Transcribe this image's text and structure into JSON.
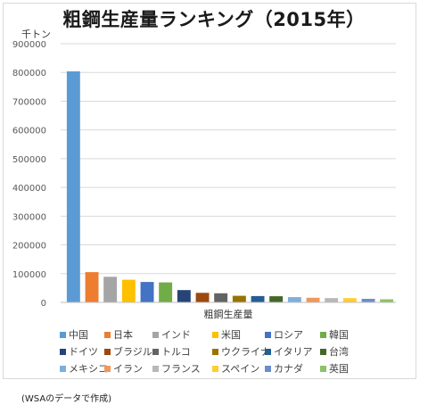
{
  "chart_data": {
    "type": "bar",
    "title": "粗鋼生産量ランキング（2015年）",
    "unit_label": "千トン",
    "xlabel": "粗鋼生産量",
    "ylabel": "",
    "ylim": [
      0,
      900000
    ],
    "ytick_step": 100000,
    "grid": true,
    "legend_position": "bottom",
    "categories": [
      "中国",
      "日本",
      "インド",
      "米国",
      "ロシア",
      "韓国",
      "ドイツ",
      "ブラジル",
      "トルコ",
      "ウクライナ",
      "イタリア",
      "台湾",
      "メキシコ",
      "イラン",
      "フランス",
      "スペイン",
      "カナダ",
      "英国"
    ],
    "values": [
      803825,
      105134,
      89026,
      78845,
      71110,
      69670,
      42676,
      33258,
      31517,
      22968,
      22018,
      21392,
      18218,
      16146,
      14984,
      14845,
      12473,
      10907
    ],
    "colors": [
      "#5b9bd5",
      "#ed7d31",
      "#a5a5a5",
      "#ffc000",
      "#4472c4",
      "#70ad47",
      "#264478",
      "#9e480e",
      "#636363",
      "#997300",
      "#255e91",
      "#43682b",
      "#7cafdd",
      "#f1975a",
      "#b7b7b7",
      "#ffcd33",
      "#698ed0",
      "#8cc168"
    ]
  },
  "footnote": "(WSAのデータで作成)"
}
